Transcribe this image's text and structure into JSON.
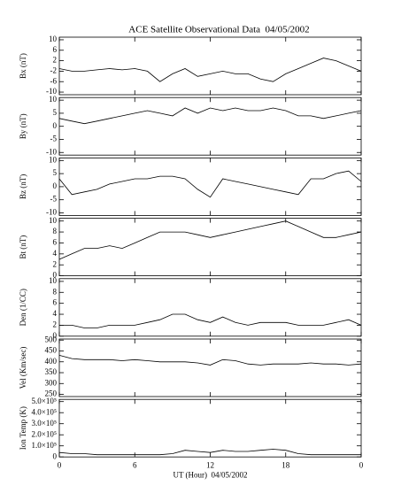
{
  "chart_data": [
    {
      "type": "line",
      "title": "ACE Satellite Observational Data  04/05/2002",
      "ylabel": "Bx (nT)",
      "color": "#000000",
      "x": [
        0,
        1,
        2,
        3,
        4,
        5,
        6,
        7,
        8,
        9,
        10,
        11,
        12,
        13,
        14,
        15,
        16,
        17,
        18,
        19,
        20,
        21,
        22,
        23,
        24
      ],
      "values": [
        -1,
        -2,
        -2,
        -1.5,
        -1,
        -1.5,
        -1,
        -2,
        -6,
        -3,
        -1,
        -4,
        -3,
        -2,
        -3,
        -3,
        -5,
        -6,
        -3,
        -1,
        1,
        3,
        2,
        0,
        -2
      ],
      "xlim": [
        0,
        24
      ],
      "xticks": [
        0,
        6,
        12,
        18,
        {
          "value": 24,
          "label": "0"
        }
      ],
      "ylim": [
        -11,
        11
      ],
      "yticks": [
        -10,
        -6,
        -2,
        2,
        6,
        10
      ]
    },
    {
      "type": "line",
      "ylabel": "By (nT)",
      "color": "#000000",
      "x": [
        0,
        1,
        2,
        3,
        4,
        5,
        6,
        7,
        8,
        9,
        10,
        11,
        12,
        13,
        14,
        15,
        16,
        17,
        18,
        19,
        20,
        21,
        22,
        23,
        24
      ],
      "values": [
        3,
        2,
        1,
        2,
        3,
        4,
        5,
        6,
        5,
        4,
        7,
        5,
        7,
        6,
        7,
        6,
        6,
        7,
        6,
        4,
        4,
        3,
        4,
        5,
        6
      ],
      "xlim": [
        0,
        24
      ],
      "xticks": [
        0,
        6,
        12,
        18,
        {
          "value": 24,
          "label": "0"
        }
      ],
      "ylim": [
        -11,
        11
      ],
      "yticks": [
        -10,
        -5,
        0,
        5,
        10
      ]
    },
    {
      "type": "line",
      "ylabel": "Bz (nT)",
      "color": "#000000",
      "x": [
        0,
        1,
        2,
        3,
        4,
        5,
        6,
        7,
        8,
        9,
        10,
        11,
        12,
        13,
        14,
        15,
        16,
        17,
        18,
        19,
        20,
        21,
        22,
        23,
        24
      ],
      "values": [
        3,
        -3,
        -2,
        -1,
        1,
        2,
        3,
        3,
        4,
        4,
        3,
        -1,
        -4,
        3,
        2,
        1,
        0,
        -1,
        -2,
        -3,
        3,
        3,
        5,
        6,
        2
      ],
      "xlim": [
        0,
        24
      ],
      "xticks": [
        0,
        6,
        12,
        18,
        {
          "value": 24,
          "label": "0"
        }
      ],
      "ylim": [
        -11,
        11
      ],
      "yticks": [
        -10,
        -5,
        0,
        5,
        10
      ]
    },
    {
      "type": "line",
      "ylabel": "Bt (nT)",
      "color": "#000000",
      "x": [
        0,
        1,
        2,
        3,
        4,
        5,
        6,
        7,
        8,
        9,
        10,
        11,
        12,
        13,
        14,
        15,
        16,
        17,
        18,
        19,
        20,
        21,
        22,
        23,
        24
      ],
      "values": [
        3,
        4,
        5,
        5,
        5.5,
        5,
        6,
        7,
        8,
        8,
        8,
        7.5,
        7,
        7.5,
        8,
        8.5,
        9,
        9.5,
        10,
        9,
        8,
        7,
        7,
        7.5,
        8
      ],
      "xlim": [
        0,
        24
      ],
      "xticks": [
        0,
        6,
        12,
        18,
        {
          "value": 24,
          "label": "0"
        }
      ],
      "ylim": [
        0,
        10.5
      ],
      "yticks": [
        0,
        2,
        4,
        6,
        8,
        10
      ]
    },
    {
      "type": "line",
      "ylabel": "Den (1/CC)",
      "color": "#000000",
      "x": [
        0,
        1,
        2,
        3,
        4,
        5,
        6,
        7,
        8,
        9,
        10,
        11,
        12,
        13,
        14,
        15,
        16,
        17,
        18,
        19,
        20,
        21,
        22,
        23,
        24
      ],
      "values": [
        2,
        2,
        1.5,
        1.5,
        2,
        2,
        2,
        2.5,
        3,
        4,
        4,
        3,
        2.5,
        3.5,
        2.5,
        2,
        2.5,
        2.5,
        2.5,
        2,
        2,
        2,
        2.5,
        3,
        2
      ],
      "xlim": [
        0,
        24
      ],
      "xticks": [
        0,
        6,
        12,
        18,
        {
          "value": 24,
          "label": "0"
        }
      ],
      "ylim": [
        0,
        10.5
      ],
      "yticks": [
        0,
        2,
        4,
        6,
        8,
        10
      ]
    },
    {
      "type": "line",
      "ylabel": "Vel (Km/sec)",
      "color": "#000000",
      "x": [
        0,
        1,
        2,
        3,
        4,
        5,
        6,
        7,
        8,
        9,
        10,
        11,
        12,
        13,
        14,
        15,
        16,
        17,
        18,
        19,
        20,
        21,
        22,
        23,
        24
      ],
      "values": [
        430,
        415,
        410,
        410,
        410,
        405,
        410,
        405,
        400,
        400,
        400,
        395,
        385,
        410,
        405,
        390,
        385,
        390,
        390,
        390,
        395,
        390,
        390,
        385,
        390
      ],
      "xlim": [
        0,
        24
      ],
      "xticks": [
        0,
        6,
        12,
        18,
        {
          "value": 24,
          "label": "0"
        }
      ],
      "ylim": [
        240,
        505
      ],
      "yticks": [
        250,
        300,
        350,
        400,
        450,
        500
      ]
    },
    {
      "type": "line",
      "ylabel": "Ion Temp (K)",
      "xlabel": "UT (Hour)  04/05/2002",
      "color": "#000000",
      "x": [
        0,
        1,
        2,
        3,
        4,
        5,
        6,
        7,
        8,
        9,
        10,
        11,
        12,
        13,
        14,
        15,
        16,
        17,
        18,
        19,
        20,
        21,
        22,
        23,
        24
      ],
      "values": [
        40000,
        30000,
        30000,
        20000,
        20000,
        20000,
        20000,
        20000,
        20000,
        30000,
        60000,
        50000,
        40000,
        60000,
        50000,
        50000,
        60000,
        70000,
        60000,
        30000,
        20000,
        20000,
        20000,
        20000,
        20000
      ],
      "xlim": [
        0,
        24
      ],
      "xticks": [
        0,
        6,
        12,
        18,
        {
          "value": 24,
          "label": "0"
        }
      ],
      "ylim": [
        0,
        520000
      ],
      "yticks": [
        0,
        {
          "value": 100000,
          "label": "1.0×10⁵"
        },
        {
          "value": 200000,
          "label": "2.0×10⁵"
        },
        {
          "value": 300000,
          "label": "3.0×10⁵"
        },
        {
          "value": 400000,
          "label": "4.0×10⁵"
        },
        {
          "value": 500000,
          "label": "5.0×10⁵"
        }
      ]
    }
  ]
}
